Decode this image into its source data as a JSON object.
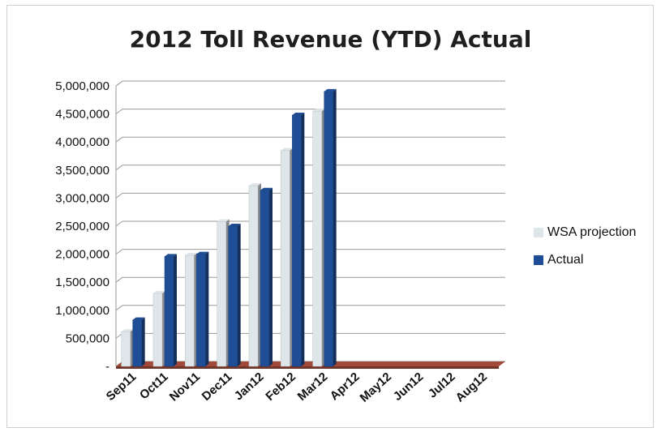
{
  "chart_data": {
    "type": "bar",
    "title": "2012 Toll Revenue (YTD) Actual",
    "categories": [
      "Sep11",
      "Oct11",
      "Nov11",
      "Dec11",
      "Jan12",
      "Feb12",
      "Mar12",
      "Apr12",
      "May12",
      "Jun12",
      "Jul12",
      "Aug12"
    ],
    "series": [
      {
        "name": "WSA projection",
        "color": "#dfe6e9",
        "values": [
          620000,
          1300000,
          1980000,
          2580000,
          3220000,
          3850000,
          4550000,
          0,
          0,
          0,
          0,
          0
        ]
      },
      {
        "name": "Actual",
        "color": "#1f4e96",
        "values": [
          830000,
          1960000,
          2000000,
          2500000,
          3140000,
          4480000,
          4900000,
          0,
          0,
          0,
          0,
          0
        ]
      }
    ],
    "yticks": [
      "-",
      "500,000",
      "1,000,000",
      "1,500,000",
      "2,000,000",
      "2,500,000",
      "3,000,000",
      "3,500,000",
      "4,000,000",
      "4,500,000",
      "5,000,000"
    ],
    "ylim": [
      0,
      5000000
    ],
    "grid": true,
    "legend": "right",
    "floor_color": "#a14a3a"
  }
}
